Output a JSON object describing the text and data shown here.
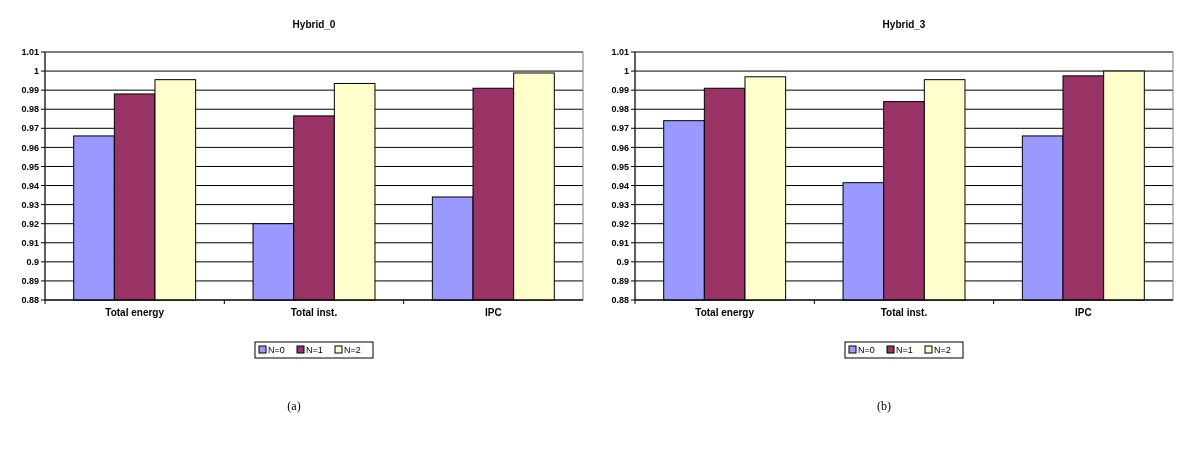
{
  "chart_data": [
    {
      "type": "bar",
      "title": "Hybrid_0",
      "categories": [
        "Total energy",
        "Total inst.",
        "IPC"
      ],
      "series": [
        {
          "name": "N=0",
          "color": "#9999ff",
          "values": [
            0.966,
            0.92,
            0.934
          ]
        },
        {
          "name": "N=1",
          "color": "#993366",
          "values": [
            0.988,
            0.9765,
            0.991
          ]
        },
        {
          "name": "N=2",
          "color": "#ffffcc",
          "values": [
            0.9955,
            0.9935,
            0.999
          ]
        }
      ],
      "ylim": [
        0.88,
        1.01
      ],
      "yticks": [
        0.88,
        0.89,
        0.9,
        0.91,
        0.92,
        0.93,
        0.94,
        0.95,
        0.96,
        0.97,
        0.98,
        0.99,
        1,
        1.01
      ],
      "grid": "y",
      "legend": "bottom",
      "annotations": [
        "(a)"
      ]
    },
    {
      "type": "bar",
      "title": "Hybrid_3",
      "categories": [
        "Total energy",
        "Total inst.",
        "IPC"
      ],
      "series": [
        {
          "name": "N=0",
          "color": "#9999ff",
          "values": [
            0.974,
            0.9415,
            0.966
          ]
        },
        {
          "name": "N=1",
          "color": "#993366",
          "values": [
            0.991,
            0.984,
            0.9975
          ]
        },
        {
          "name": "N=2",
          "color": "#ffffcc",
          "values": [
            0.997,
            0.9955,
            1.0
          ]
        }
      ],
      "ylim": [
        0.88,
        1.01
      ],
      "yticks": [
        0.88,
        0.89,
        0.9,
        0.91,
        0.92,
        0.93,
        0.94,
        0.95,
        0.96,
        0.97,
        0.98,
        0.99,
        1,
        1.01
      ],
      "grid": "y",
      "legend": "bottom",
      "annotations": [
        "(b)"
      ]
    }
  ]
}
